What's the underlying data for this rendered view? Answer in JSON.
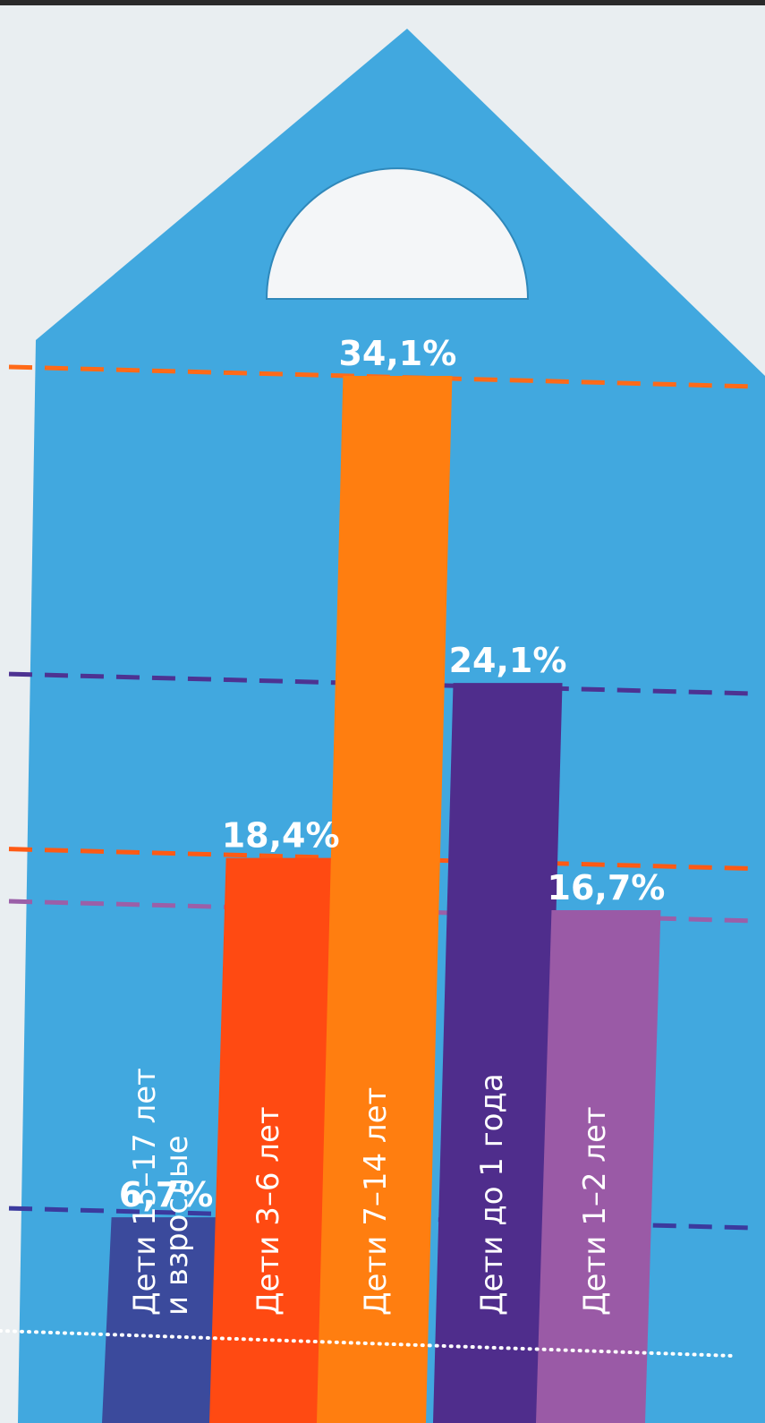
{
  "chart_data": {
    "type": "bar",
    "title": "",
    "xlabel": "",
    "ylabel": "",
    "ylim": [
      0,
      36
    ],
    "grid": false,
    "categories": [
      "Дети 15–17 лет и взрослые",
      "Дети 3–6 лет",
      "Дети 7–14 лет",
      "Дети до 1 года",
      "Дети 1–2 лет"
    ],
    "category_lines": [
      [
        "Дети 15–17 лет",
        "и взрослые"
      ],
      [
        "Дети 3–6 лет"
      ],
      [
        "Дети 7–14 лет"
      ],
      [
        "Дети до 1 года"
      ],
      [
        "Дети 1–2 лет"
      ]
    ],
    "values": [
      6.7,
      18.4,
      34.1,
      24.1,
      16.7
    ],
    "value_labels": [
      "6,7%",
      "18,4%",
      "34,1%",
      "24,1%",
      "16,7%"
    ],
    "colors": [
      "#3b4a9c",
      "#ff4a12",
      "#ff7e10",
      "#4f2d8c",
      "#9a5aa6"
    ],
    "guide_colors": [
      "#3b3a9e",
      "#ff5a14",
      "#ff6a18",
      "#4d3292",
      "#9b5fa8"
    ]
  },
  "colors": {
    "background": "#41a8df",
    "dotted_line": "#ffffff"
  }
}
